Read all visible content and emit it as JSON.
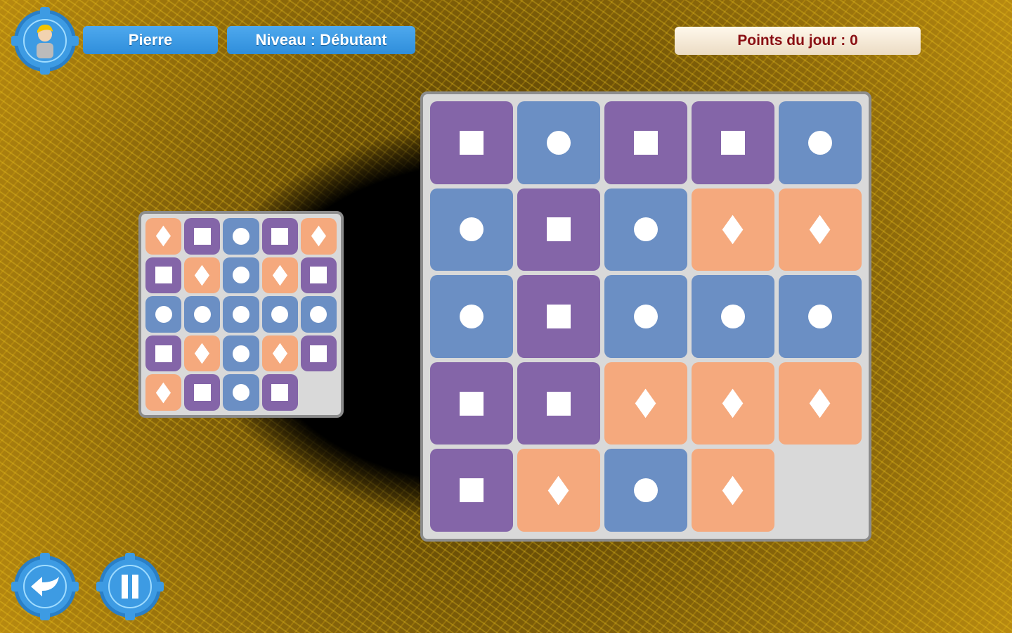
{
  "header": {
    "player_name": "Pierre",
    "level": "Niveau : Débutant",
    "daily_points": "Points du jour : 0"
  },
  "icons": {
    "avatar": "player-avatar-icon",
    "back": "back-arrow-icon",
    "pause": "pause-icon"
  },
  "colors": {
    "purple": "#8465a8",
    "blue": "#6b8fc4",
    "orange": "#f5a97d",
    "button": "#3d9be3"
  },
  "shape_colors": {
    "square": "purple",
    "circle": "blue",
    "diamond": "orange"
  },
  "target_grid": [
    [
      "diamond",
      "square",
      "circle",
      "square",
      "diamond"
    ],
    [
      "square",
      "diamond",
      "circle",
      "diamond",
      "square"
    ],
    [
      "circle",
      "circle",
      "circle",
      "circle",
      "circle"
    ],
    [
      "square",
      "diamond",
      "circle",
      "diamond",
      "square"
    ],
    [
      "diamond",
      "square",
      "circle",
      "square",
      null
    ]
  ],
  "play_grid": [
    [
      "square",
      "circle",
      "square",
      "square",
      "circle"
    ],
    [
      "circle",
      "square",
      "circle",
      "diamond",
      "diamond"
    ],
    [
      "circle",
      "square",
      "circle",
      "circle",
      "circle"
    ],
    [
      "square",
      "square",
      "diamond",
      "diamond",
      "diamond"
    ],
    [
      "square",
      "diamond",
      "circle",
      "diamond",
      null
    ]
  ]
}
